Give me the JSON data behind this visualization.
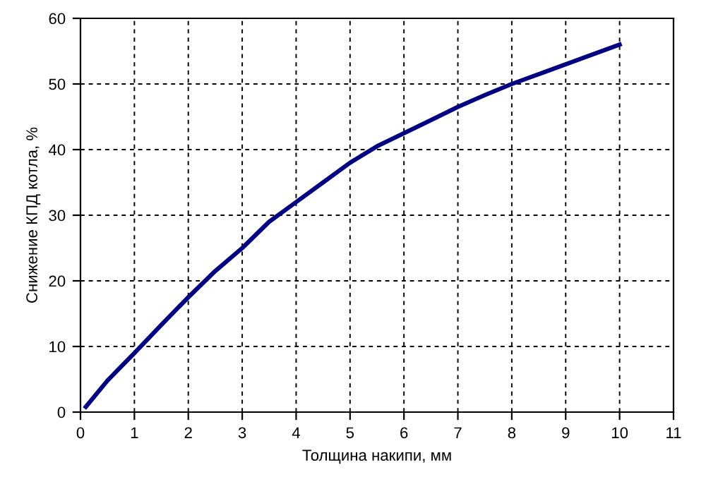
{
  "chart_data": {
    "type": "line",
    "xlabel": "Толщина накипи, мм",
    "ylabel": "Снижение КПД котла, %",
    "x": [
      0.1,
      0.5,
      1,
      1.5,
      2,
      2.5,
      3,
      3.5,
      4,
      4.5,
      5,
      5.5,
      6,
      6.5,
      7,
      7.5,
      8,
      8.5,
      9,
      9.5,
      10
    ],
    "series": [
      {
        "color": "#000080",
        "values": [
          0.8,
          4.8,
          9,
          13.3,
          17.5,
          21.5,
          25,
          29,
          32,
          35,
          38,
          40.5,
          42.5,
          44.5,
          46.5,
          48.3,
          50,
          51.5,
          53,
          54.5,
          56
        ]
      }
    ],
    "xlim": [
      0,
      11
    ],
    "ylim": [
      0,
      60
    ],
    "xticks": [
      0,
      1,
      2,
      3,
      4,
      5,
      6,
      7,
      8,
      9,
      10,
      11
    ],
    "yticks": [
      0,
      10,
      20,
      30,
      40,
      50,
      60
    ],
    "grid": true,
    "line_style": "solid",
    "marker": "none"
  }
}
